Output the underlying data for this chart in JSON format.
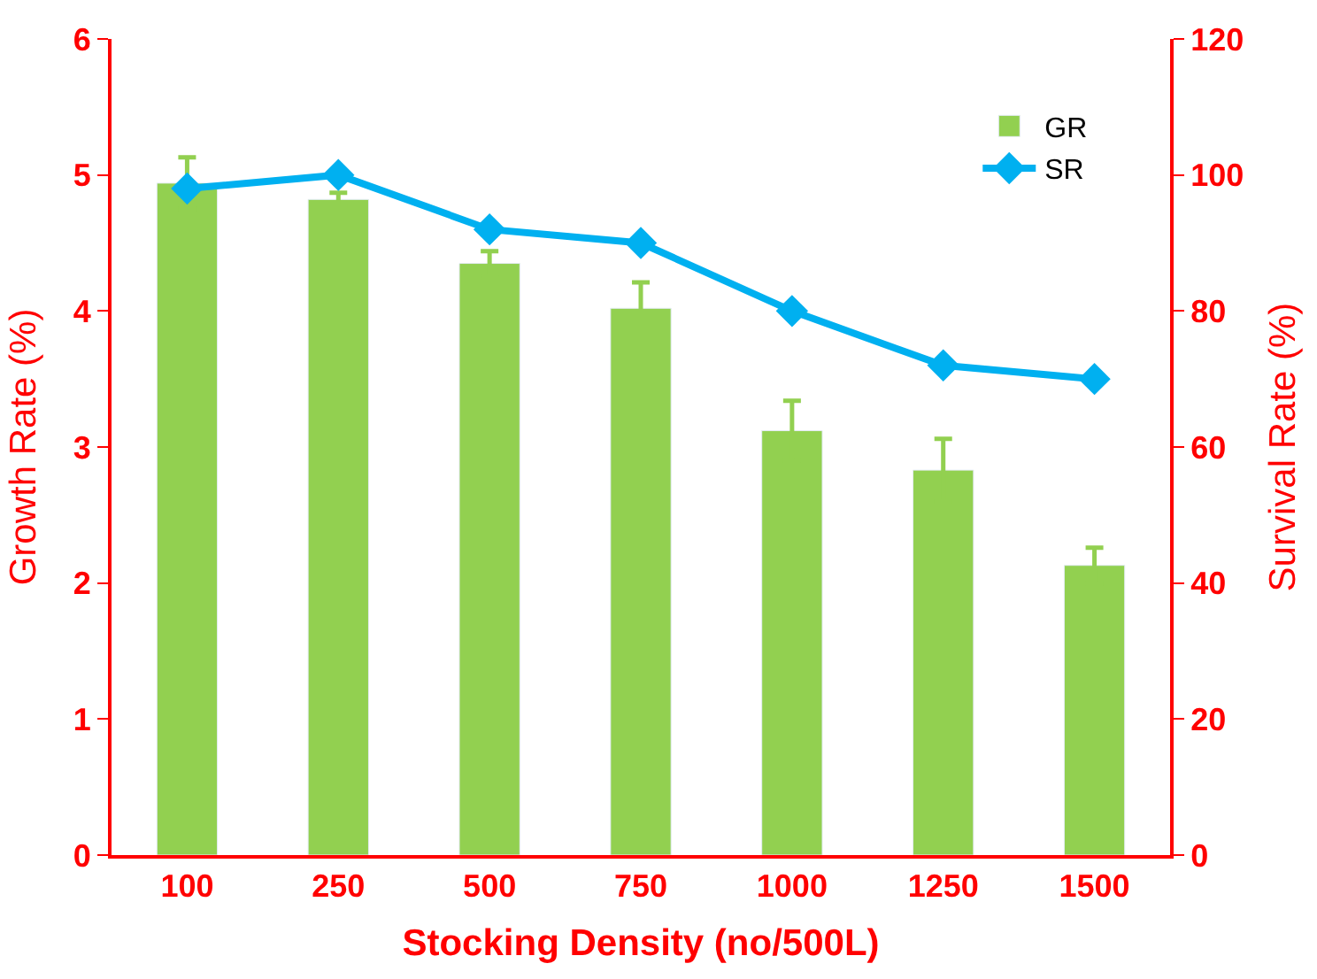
{
  "chart_data": {
    "type": "bar",
    "xlabel": "Stocking Density (no/500L)",
    "ylabel": "Growth Rate (%)",
    "y2label": "Survival Rate (%)",
    "categories": [
      "100",
      "250",
      "500",
      "750",
      "1000",
      "1250",
      "1500"
    ],
    "series": [
      {
        "name": "GR",
        "color": "#92d050",
        "values": [
          4.94,
          4.82,
          4.35,
          4.02,
          3.12,
          2.83,
          2.13
        ],
        "errors": [
          0.19,
          0.05,
          0.09,
          0.19,
          0.22,
          0.23,
          0.13
        ]
      },
      {
        "name": "SR",
        "type": "line",
        "axis": "y2",
        "color": "#00b0f0",
        "marker": "diamond",
        "values": [
          98,
          100,
          92,
          90,
          80,
          72,
          70
        ]
      }
    ],
    "ylim": [
      0,
      6
    ],
    "yticks": [
      0,
      1,
      2,
      3,
      4,
      5,
      6
    ],
    "y2lim": [
      0,
      120
    ],
    "y2ticks": [
      0,
      20,
      40,
      60,
      80,
      100,
      120
    ],
    "legend": "top right"
  }
}
